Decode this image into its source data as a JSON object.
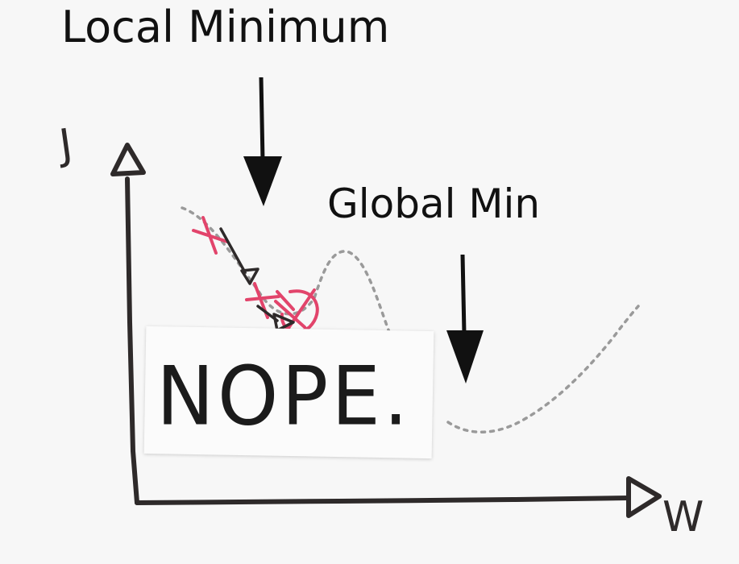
{
  "labels": {
    "local_minimum": "Local Minimum",
    "global_min": "Global Min"
  },
  "axes": {
    "y_label": "J",
    "x_label": "W"
  },
  "sticky_note": {
    "text": "NOPE."
  },
  "colors": {
    "ink": "#111111",
    "pen_black": "#2e2a2a",
    "pen_red": "#e2446b",
    "curve": "#9a9a9a",
    "paper": "#fbfbfb"
  }
}
